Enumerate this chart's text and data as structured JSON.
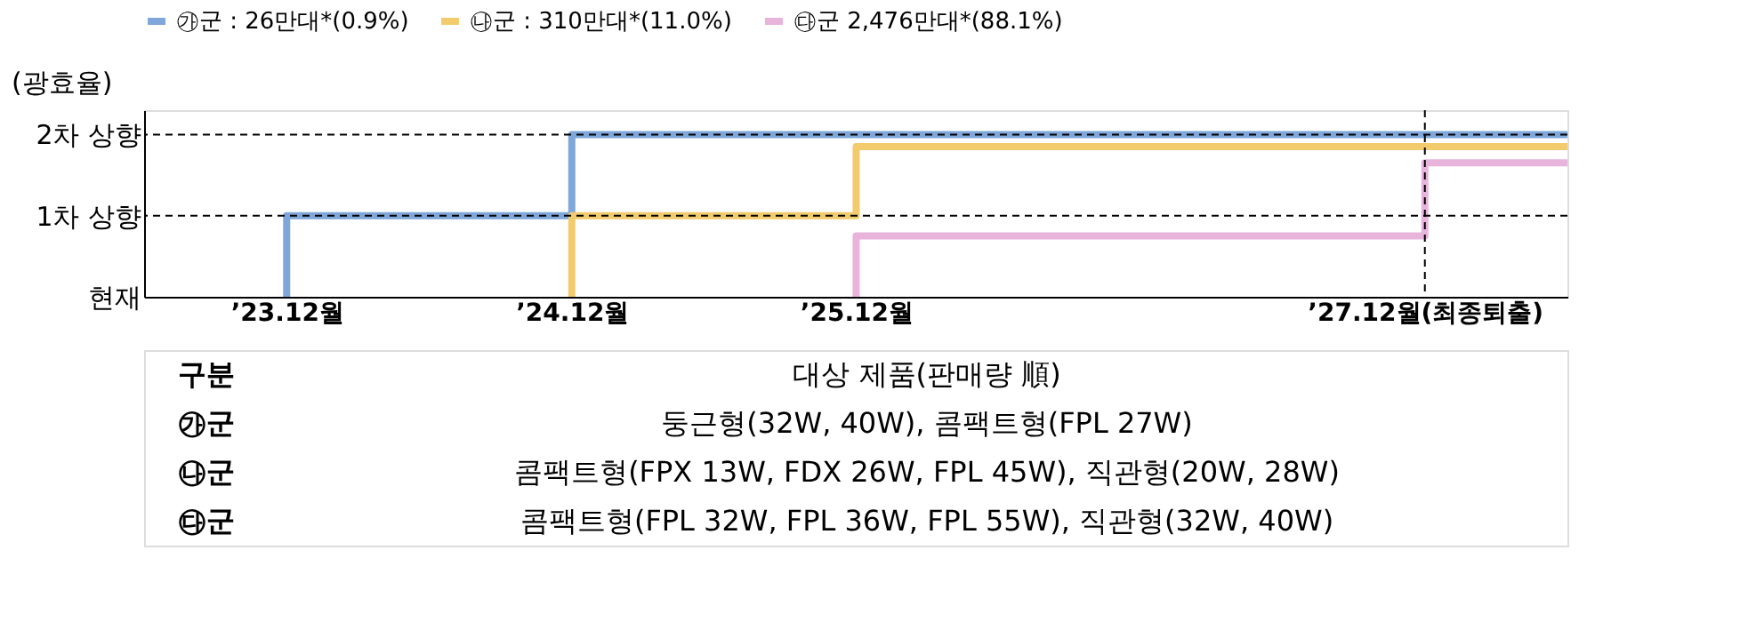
{
  "chart_data": {
    "type": "step",
    "ylabel": "(광효율)",
    "series": [
      {
        "name": "㉮군 : 26만대*(0.9%)",
        "color": "#7fa7d9",
        "x": [
          "2023-12",
          "2023-12",
          "2024-12",
          "2024-12",
          "2028-06"
        ],
        "values": [
          0,
          1,
          1,
          2,
          2
        ]
      },
      {
        "name": "㉯군 : 310만대*(11.0%)",
        "color": "#f2cb6c",
        "x": [
          "2024-12",
          "2024-12",
          "2025-12",
          "2025-12",
          "2028-06"
        ],
        "values": [
          0,
          1,
          1,
          1.85,
          1.85
        ]
      },
      {
        "name": "㉰군 2,476만대*(88.1%)",
        "color": "#e8b4dc",
        "x": [
          "2025-12",
          "2025-12",
          "2027-12",
          "2027-12",
          "2028-06"
        ],
        "values": [
          0,
          0.75,
          0.75,
          1.65,
          1.65
        ]
      }
    ],
    "xlim": [
      "2023-06",
      "2028-06"
    ],
    "xticks": [
      {
        "value": "2023-12",
        "label": "’23.12월"
      },
      {
        "value": "2024-12",
        "label": "’24.12월"
      },
      {
        "value": "2025-12",
        "label": "’25.12월"
      },
      {
        "value": "2027-12",
        "label": "’27.12월(최종퇴출)"
      }
    ],
    "ylim": [
      0,
      2.3
    ],
    "yticks": [
      {
        "value": 0,
        "label": "현재"
      },
      {
        "value": 1,
        "label": "1차 상향"
      },
      {
        "value": 2,
        "label": "2차 상향"
      }
    ],
    "ref_lines": [
      {
        "axis": "y",
        "value": 2,
        "line_style": "dashed"
      },
      {
        "axis": "y",
        "value": 1,
        "line_style": "dashed"
      },
      {
        "axis": "x",
        "value": "2027-12",
        "line_style": "dashed"
      }
    ],
    "legend": "top",
    "grid": false,
    "annotations": [
      "구분",
      "대상 제품(판매량 順)",
      "㉮군",
      "둥근형(32W, 40W), 콤팩트형(FPL 27W)",
      "㉯군",
      "콤팩트형(FPX 13W, FDX 26W, FPL 45W), 직관형(20W, 28W)",
      "㉰군",
      "콤팩트형(FPL 32W, FPL 36W, FPL 55W), 직관형(32W, 40W)"
    ]
  }
}
